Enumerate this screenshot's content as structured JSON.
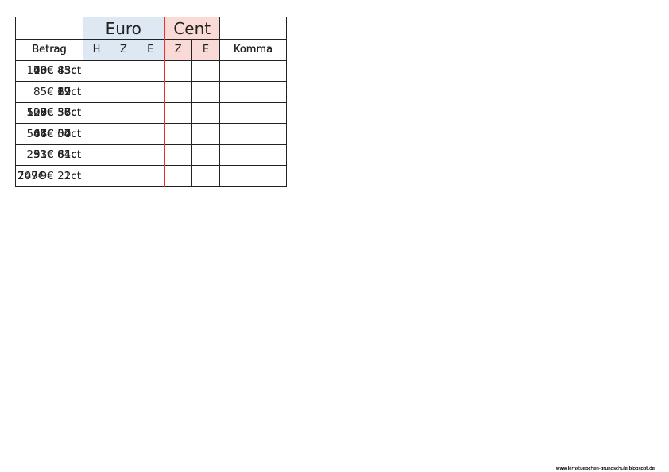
{
  "cards": [
    {
      "euro": "Euro",
      "cent": "Cent",
      "betrag": "Betrag",
      "columns": [
        "H",
        "Z",
        "E",
        "Z",
        "E"
      ],
      "komma": "Komma",
      "rows": [
        {
          "amount": "16€ 43ct"
        },
        {
          "amount": "19ct"
        },
        {
          "amount": "27€ 56ct"
        },
        {
          "amount": "8€ 04ct"
        },
        {
          "amount": "253€ 81ct"
        },
        {
          "amount": "2ct"
        }
      ],
      "footer": "www.lernstuebchen-grundschule.blogspot.de"
    },
    {
      "euro": "Euro",
      "cent": "Cent",
      "betrag": "Betrag",
      "columns": [
        "H",
        "Z",
        "E",
        "Z",
        "E"
      ],
      "komma": "Komma",
      "rows": [
        {
          "amount": "40€ 43ct"
        },
        {
          "amount": "69ct"
        },
        {
          "amount": "108€ 36ct"
        },
        {
          "amount": "64€   4ct"
        },
        {
          "amount": "33€ 61ct"
        },
        {
          "amount": "749€",
          "align": "left"
        }
      ],
      "footer": "www.lernstuebchen-grundschule.blogspot.de"
    },
    {
      "euro": "Euro",
      "cent": "Cent",
      "betrag": "Betrag",
      "columns": [
        "H",
        "Z",
        "E",
        "Z",
        "E"
      ],
      "komma": "Komma",
      "rows": [
        {
          "amount": "73€ 83ct"
        },
        {
          "amount": "27ct"
        },
        {
          "amount": "108€   7ct"
        },
        {
          "amount": "44€ 50ct"
        },
        {
          "amount": "91€ 61ct"
        },
        {
          "amount": "207€",
          "align": "left"
        }
      ],
      "footer": "www.lernstuebchen-grundschule.blogspot.de"
    },
    {
      "euro": "Euro",
      "cent": "Cent",
      "betrag": "Betrag",
      "columns": [
        "H",
        "Z",
        "E",
        "Z",
        "E"
      ],
      "komma": "Komma",
      "rows": [
        {
          "amount": "100€ 45ct"
        },
        {
          "amount": "85€ 12ct"
        },
        {
          "amount": "519€ 58ct"
        },
        {
          "amount": "507€   7ct"
        },
        {
          "amount": "84ct"
        },
        {
          "amount": "9€ 21ct"
        }
      ],
      "footer": "www.lernstuebchen-grundschule.blogspot.de"
    }
  ]
}
